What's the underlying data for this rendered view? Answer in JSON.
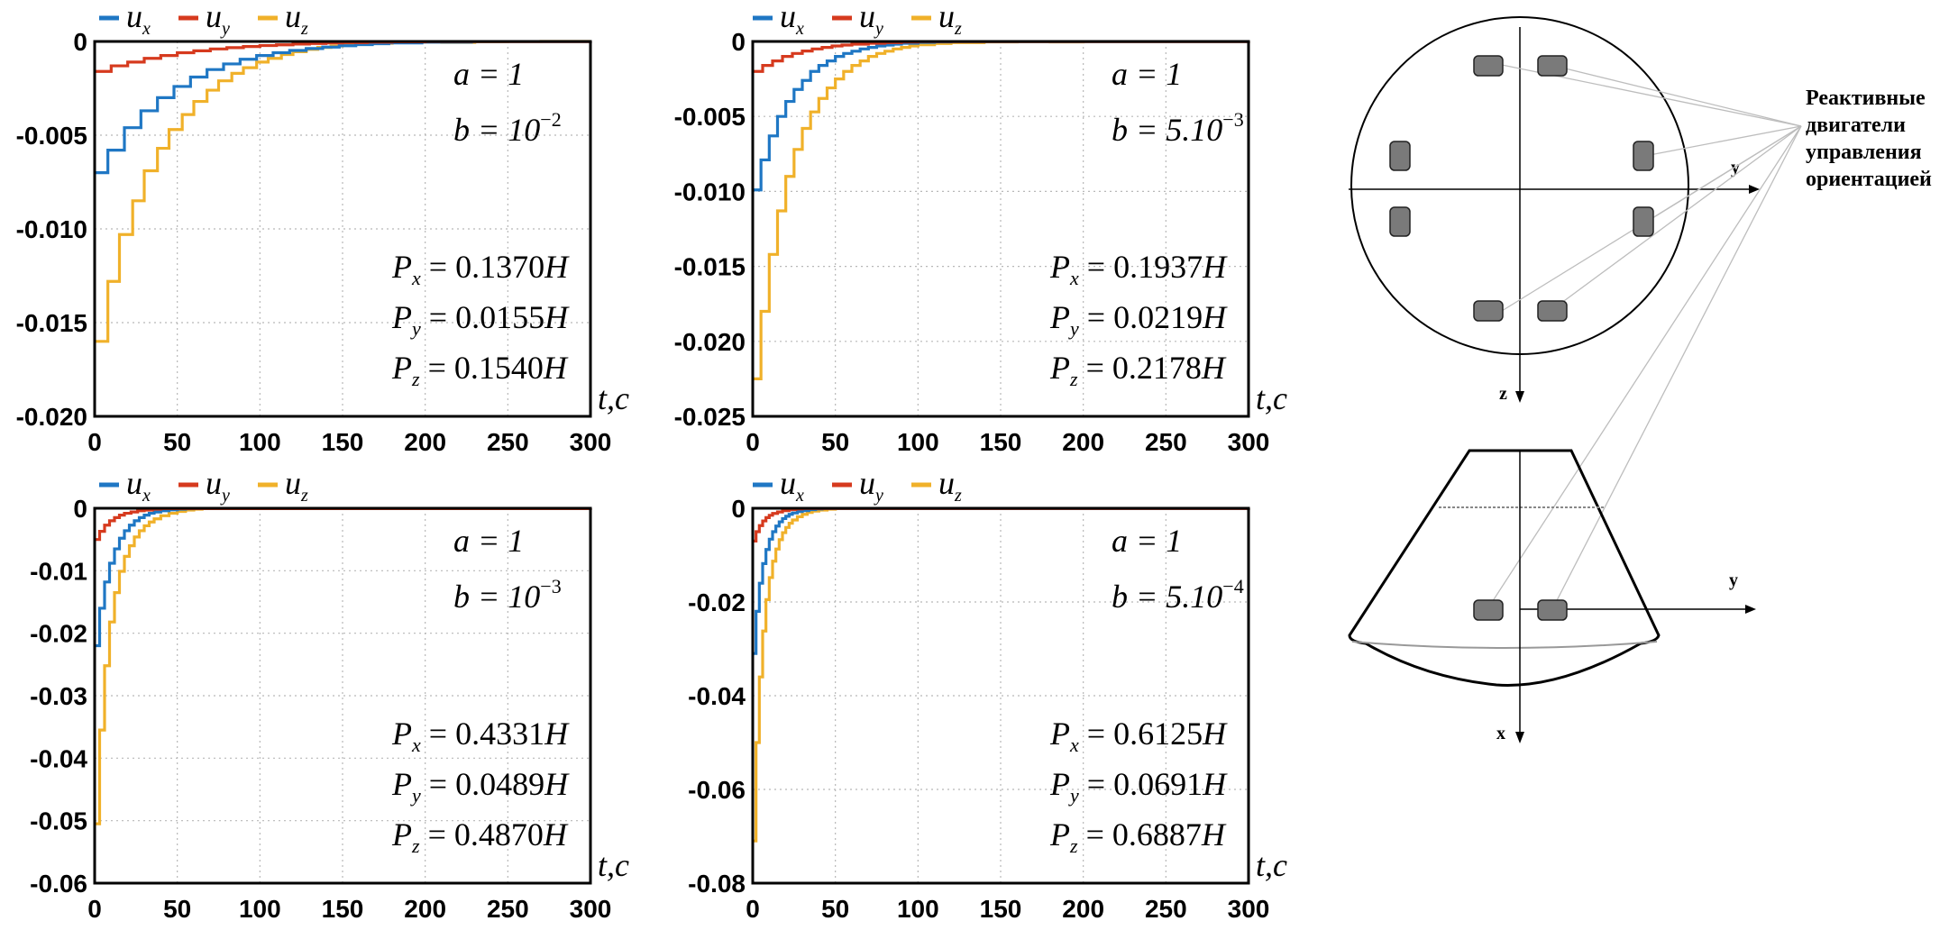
{
  "colors": {
    "ux": "#1f77c4",
    "uy": "#d63a1e",
    "uz": "#f0b12a",
    "grid": "#b8b8b8"
  },
  "chart_data": [
    {
      "type": "line",
      "legend": [
        "u_x",
        "u_y",
        "u_z"
      ],
      "ylim": [
        -0.02,
        0
      ],
      "yticks": [
        0,
        -0.005,
        -0.01,
        -0.015,
        -0.02
      ],
      "ytick_labels": [
        "0",
        "-0.005",
        "-0.010",
        "-0.015",
        "-0.020"
      ],
      "xlim": [
        0,
        300
      ],
      "xticks": [
        0,
        50,
        100,
        150,
        200,
        250,
        300
      ],
      "xlabel": "t,c",
      "a": "a = 1",
      "b": "b = 10",
      "b_exp": "−2",
      "P": [
        "0.1370H",
        "0.0155H",
        "0.1540H"
      ],
      "series": [
        {
          "name": "u_x",
          "x": [
            0,
            8,
            18,
            28,
            38,
            48,
            58,
            68,
            78,
            88,
            98,
            108,
            118,
            128,
            138,
            148,
            158,
            168,
            178,
            198,
            228,
            300
          ],
          "y": [
            -0.007,
            -0.0058,
            -0.0046,
            -0.0037,
            -0.003,
            -0.0024,
            -0.0019,
            -0.0015,
            -0.0012,
            -0.00095,
            -0.00075,
            -0.0006,
            -0.00048,
            -0.00038,
            -0.0003,
            -0.00023,
            -0.00017,
            -0.00012,
            -8e-05,
            -4e-05,
            -1e-05,
            0
          ]
        },
        {
          "name": "u_y",
          "x": [
            0,
            10,
            20,
            30,
            40,
            50,
            60,
            70,
            80,
            90,
            100,
            110,
            120,
            130,
            140,
            150,
            165,
            180,
            200,
            300
          ],
          "y": [
            -0.0016,
            -0.0013,
            -0.0011,
            -0.0009,
            -0.00075,
            -0.0006,
            -0.0005,
            -0.0004,
            -0.00033,
            -0.00027,
            -0.00022,
            -0.00018,
            -0.00014,
            -0.00011,
            -8e-05,
            -6e-05,
            -4e-05,
            -2e-05,
            -1e-05,
            0
          ]
        },
        {
          "name": "u_z",
          "x": [
            0,
            8,
            15,
            23,
            30,
            38,
            45,
            53,
            60,
            68,
            75,
            83,
            90,
            98,
            105,
            113,
            120,
            128,
            135,
            143,
            150,
            158,
            165,
            180,
            195,
            210,
            230,
            250,
            270,
            300
          ],
          "y": [
            -0.016,
            -0.0128,
            -0.0103,
            -0.0085,
            -0.0069,
            -0.0057,
            -0.0047,
            -0.0039,
            -0.0032,
            -0.0026,
            -0.0021,
            -0.0017,
            -0.0014,
            -0.0011,
            -0.0009,
            -0.0007,
            -0.00055,
            -0.00042,
            -0.00032,
            -0.00024,
            -0.00018,
            -0.00013,
            -0.0001,
            -6e-05,
            -3e-05,
            -5e-05,
            -2e-05,
            -1e-05,
            0,
            0
          ]
        }
      ]
    },
    {
      "type": "line",
      "legend": [
        "u_x",
        "u_y",
        "u_z"
      ],
      "ylim": [
        -0.025,
        0
      ],
      "yticks": [
        0,
        -0.005,
        -0.01,
        -0.015,
        -0.02,
        -0.025
      ],
      "ytick_labels": [
        "0",
        "-0.005",
        "-0.010",
        "-0.015",
        "-0.020",
        "-0.025"
      ],
      "xlim": [
        0,
        300
      ],
      "xticks": [
        0,
        50,
        100,
        150,
        200,
        250,
        300
      ],
      "xlabel": "t,c",
      "a": "a = 1",
      "b": "b = 5.10",
      "b_exp": "−3",
      "P": [
        "0.1937H",
        "0.0219H",
        "0.2178H"
      ],
      "series": [
        {
          "name": "u_x",
          "x": [
            0,
            5,
            10,
            15,
            20,
            25,
            30,
            35,
            40,
            45,
            50,
            55,
            60,
            65,
            70,
            75,
            80,
            85,
            90,
            100,
            110,
            120,
            300
          ],
          "y": [
            -0.0099,
            -0.0079,
            -0.0063,
            -0.005,
            -0.004,
            -0.0032,
            -0.0026,
            -0.002,
            -0.0016,
            -0.0013,
            -0.001,
            -0.0008,
            -0.00065,
            -0.0005,
            -0.0004,
            -0.0003,
            -0.00024,
            -0.00018,
            -0.00012,
            -6e-05,
            -3e-05,
            -1e-05,
            0
          ]
        },
        {
          "name": "u_y",
          "x": [
            0,
            6,
            12,
            18,
            24,
            30,
            36,
            42,
            48,
            54,
            60,
            70,
            80,
            90,
            100,
            300
          ],
          "y": [
            -0.002,
            -0.0016,
            -0.0013,
            -0.001,
            -0.0008,
            -0.00064,
            -0.0005,
            -0.0004,
            -0.0003,
            -0.00024,
            -0.00018,
            -0.00012,
            -8e-05,
            -4e-05,
            -1e-05,
            0
          ]
        },
        {
          "name": "u_z",
          "x": [
            0,
            5,
            10,
            15,
            20,
            25,
            30,
            35,
            40,
            45,
            50,
            55,
            60,
            65,
            70,
            75,
            80,
            85,
            90,
            95,
            100,
            110,
            120,
            140,
            160,
            180,
            200,
            300
          ],
          "y": [
            -0.0225,
            -0.018,
            -0.0142,
            -0.0113,
            -0.009,
            -0.0072,
            -0.0058,
            -0.0047,
            -0.0038,
            -0.0031,
            -0.0025,
            -0.002,
            -0.0016,
            -0.0013,
            -0.001,
            -0.0008,
            -0.00065,
            -0.0005,
            -0.0004,
            -0.0003,
            -0.00022,
            -0.00014,
            -8e-05,
            -3e-05,
            -2e-05,
            -3e-05,
            -1e-05,
            0
          ]
        }
      ]
    },
    {
      "type": "line",
      "legend": [
        "u_x",
        "u_y",
        "u_z"
      ],
      "ylim": [
        -0.06,
        0
      ],
      "yticks": [
        0,
        -0.01,
        -0.02,
        -0.03,
        -0.04,
        -0.05,
        -0.06
      ],
      "ytick_labels": [
        "0",
        "-0.01",
        "-0.02",
        "-0.03",
        "-0.04",
        "-0.05",
        "-0.06"
      ],
      "xlim": [
        0,
        300
      ],
      "xticks": [
        0,
        50,
        100,
        150,
        200,
        250,
        300
      ],
      "xlabel": "t,c",
      "a": "a = 1",
      "b": "b = 10",
      "b_exp": "−3",
      "P": [
        "0.4331H",
        "0.0489H",
        "0.4870H"
      ],
      "series": [
        {
          "name": "u_x",
          "x": [
            0,
            3,
            6,
            9,
            12,
            15,
            18,
            21,
            24,
            27,
            30,
            33,
            36,
            40,
            45,
            50,
            55,
            60,
            300
          ],
          "y": [
            -0.022,
            -0.016,
            -0.0118,
            -0.0088,
            -0.0065,
            -0.0048,
            -0.0036,
            -0.0027,
            -0.002,
            -0.0015,
            -0.0011,
            -0.0008,
            -0.0006,
            -0.0004,
            -0.00025,
            -0.00015,
            -8e-05,
            -3e-05,
            0
          ]
        },
        {
          "name": "u_y",
          "x": [
            0,
            3,
            6,
            9,
            12,
            15,
            18,
            22,
            26,
            30,
            35,
            40,
            300
          ],
          "y": [
            -0.005,
            -0.0037,
            -0.0027,
            -0.002,
            -0.0015,
            -0.0011,
            -0.0008,
            -0.0006,
            -0.0004,
            -0.0003,
            -0.00015,
            -5e-05,
            0
          ]
        },
        {
          "name": "u_z",
          "x": [
            0,
            3,
            6,
            9,
            12,
            15,
            18,
            21,
            24,
            27,
            30,
            33,
            36,
            40,
            45,
            50,
            55,
            60,
            65,
            70,
            300
          ],
          "y": [
            -0.0505,
            -0.0355,
            -0.0252,
            -0.0182,
            -0.0135,
            -0.0101,
            -0.0077,
            -0.006,
            -0.0046,
            -0.0036,
            -0.0028,
            -0.0022,
            -0.0017,
            -0.0012,
            -0.0008,
            -0.0005,
            -0.0003,
            -0.00015,
            -6e-05,
            -2e-05,
            0
          ]
        }
      ]
    },
    {
      "type": "line",
      "legend": [
        "u_x",
        "u_y",
        "u_z"
      ],
      "ylim": [
        -0.08,
        0
      ],
      "yticks": [
        0,
        -0.02,
        -0.04,
        -0.06,
        -0.08
      ],
      "ytick_labels": [
        "0",
        "-0.02",
        "-0.04",
        "-0.06",
        "-0.08"
      ],
      "xlim": [
        0,
        300
      ],
      "xticks": [
        0,
        50,
        100,
        150,
        200,
        250,
        300
      ],
      "xlabel": "t,c",
      "a": "a = 1",
      "b": "b = 5.10",
      "b_exp": "−4",
      "P": [
        "0.6125H",
        "0.0691H",
        "0.6887H"
      ],
      "series": [
        {
          "name": "u_x",
          "x": [
            0,
            2,
            4,
            6,
            8,
            10,
            12,
            14,
            16,
            18,
            20,
            22,
            24,
            27,
            30,
            34,
            38,
            42,
            300
          ],
          "y": [
            -0.031,
            -0.022,
            -0.016,
            -0.0118,
            -0.0088,
            -0.0066,
            -0.005,
            -0.0038,
            -0.0029,
            -0.0022,
            -0.0017,
            -0.0013,
            -0.001,
            -0.0007,
            -0.0005,
            -0.0003,
            -0.00015,
            -5e-05,
            0
          ]
        },
        {
          "name": "u_y",
          "x": [
            0,
            2,
            4,
            6,
            8,
            10,
            12,
            15,
            18,
            22,
            26,
            30,
            300
          ],
          "y": [
            -0.007,
            -0.005,
            -0.0037,
            -0.0027,
            -0.002,
            -0.0015,
            -0.0011,
            -0.0008,
            -0.0005,
            -0.0003,
            -0.00015,
            -5e-05,
            0
          ]
        },
        {
          "name": "u_z",
          "x": [
            0,
            2,
            4,
            6,
            8,
            10,
            12,
            14,
            16,
            18,
            20,
            22,
            24,
            27,
            30,
            33,
            36,
            40,
            45,
            50,
            300
          ],
          "y": [
            -0.071,
            -0.05,
            -0.036,
            -0.0262,
            -0.0195,
            -0.0148,
            -0.0113,
            -0.0087,
            -0.0067,
            -0.0052,
            -0.0041,
            -0.0032,
            -0.0025,
            -0.0018,
            -0.0013,
            -0.0009,
            -0.0006,
            -0.0004,
            -0.0002,
            -8e-05,
            0
          ]
        }
      ]
    }
  ],
  "diagram": {
    "label_lines": [
      "Реактивные",
      "двигатели",
      "управления",
      "ориентацией"
    ],
    "top_axes": [
      "y",
      "z"
    ],
    "side_axes": [
      "y",
      "x"
    ]
  }
}
